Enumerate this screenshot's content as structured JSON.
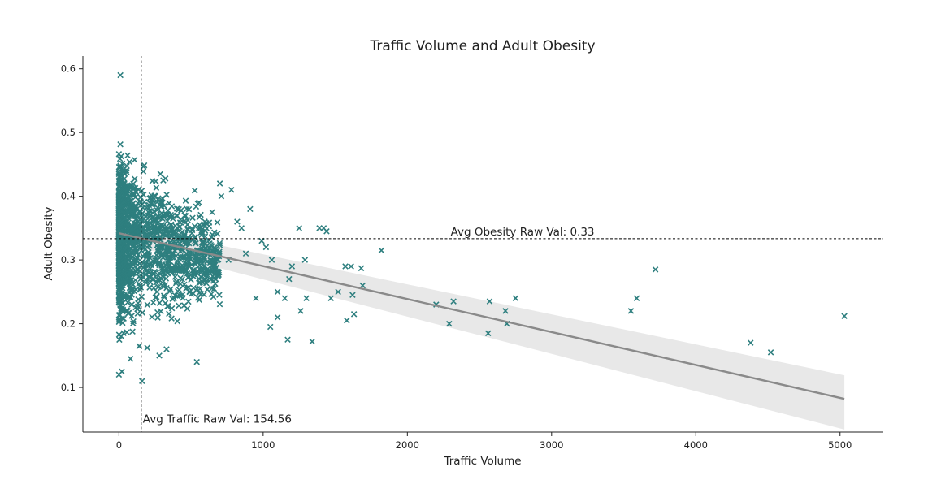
{
  "chart_data": {
    "type": "scatter",
    "title": "Traffic Volume and Adult Obesity",
    "xlabel": "Traffic Volume",
    "ylabel": "Adult Obesity",
    "xlim": [
      -250,
      5300
    ],
    "ylim": [
      0.03,
      0.62
    ],
    "x_ticks": [
      0,
      1000,
      2000,
      3000,
      4000,
      5000
    ],
    "y_ticks": [
      0.1,
      0.2,
      0.3,
      0.4,
      0.5,
      0.6
    ],
    "grid": false,
    "marker": "x",
    "colors": {
      "points": "#2e7f7f",
      "regression_line": "#8a8a8a",
      "confidence_band": "#d9d9d9",
      "reference_lines": "#000000"
    },
    "series": [
      {
        "points": [
          [
            700,
            0.42
          ],
          [
            710,
            0.4
          ],
          [
            780,
            0.41
          ],
          [
            850,
            0.35
          ],
          [
            910,
            0.38
          ],
          [
            760,
            0.3
          ],
          [
            820,
            0.36
          ],
          [
            880,
            0.31
          ],
          [
            950,
            0.24
          ],
          [
            990,
            0.33
          ],
          [
            1020,
            0.32
          ],
          [
            1060,
            0.3
          ],
          [
            1100,
            0.25
          ],
          [
            1150,
            0.24
          ],
          [
            1180,
            0.27
          ],
          [
            1200,
            0.29
          ],
          [
            1250,
            0.35
          ],
          [
            1290,
            0.3
          ],
          [
            1100,
            0.21
          ],
          [
            1170,
            0.175
          ],
          [
            1050,
            0.195
          ],
          [
            1340,
            0.172
          ],
          [
            1260,
            0.22
          ],
          [
            1300,
            0.24
          ],
          [
            1390,
            0.35
          ],
          [
            1420,
            0.35
          ],
          [
            1440,
            0.345
          ],
          [
            1470,
            0.24
          ],
          [
            1520,
            0.25
          ],
          [
            1570,
            0.29
          ],
          [
            1580,
            0.205
          ],
          [
            1610,
            0.29
          ],
          [
            1620,
            0.245
          ],
          [
            1630,
            0.215
          ],
          [
            1680,
            0.287
          ],
          [
            1690,
            0.26
          ],
          [
            1820,
            0.315
          ],
          [
            2200,
            0.23
          ],
          [
            2290,
            0.2
          ],
          [
            2320,
            0.235
          ],
          [
            2570,
            0.235
          ],
          [
            2560,
            0.185
          ],
          [
            2680,
            0.22
          ],
          [
            2690,
            0.2
          ],
          [
            2750,
            0.24
          ],
          [
            3550,
            0.22
          ],
          [
            3590,
            0.24
          ],
          [
            3720,
            0.285
          ],
          [
            4380,
            0.17
          ],
          [
            4520,
            0.155
          ],
          [
            5030,
            0.212
          ],
          [
            540,
            0.14
          ],
          [
            280,
            0.15
          ],
          [
            330,
            0.16
          ],
          [
            160,
            0.11
          ],
          [
            10,
            0.59
          ],
          [
            0,
            0.12
          ],
          [
            20,
            0.125
          ],
          [
            80,
            0.145
          ],
          [
            140,
            0.165
          ]
        ]
      }
    ],
    "regression": {
      "x": [
        0,
        5030
      ],
      "y": [
        0.342,
        0.082
      ],
      "ci_lower": [
        0.328,
        0.034
      ],
      "ci_upper": [
        0.356,
        0.119
      ]
    },
    "annotations": {
      "avg_obesity": {
        "label": "Avg Obesity Raw Val: 0.33",
        "value": 0.3335
      },
      "avg_traffic": {
        "label": "Avg Traffic Raw Val: 154.56",
        "value": 154.56
      }
    }
  }
}
